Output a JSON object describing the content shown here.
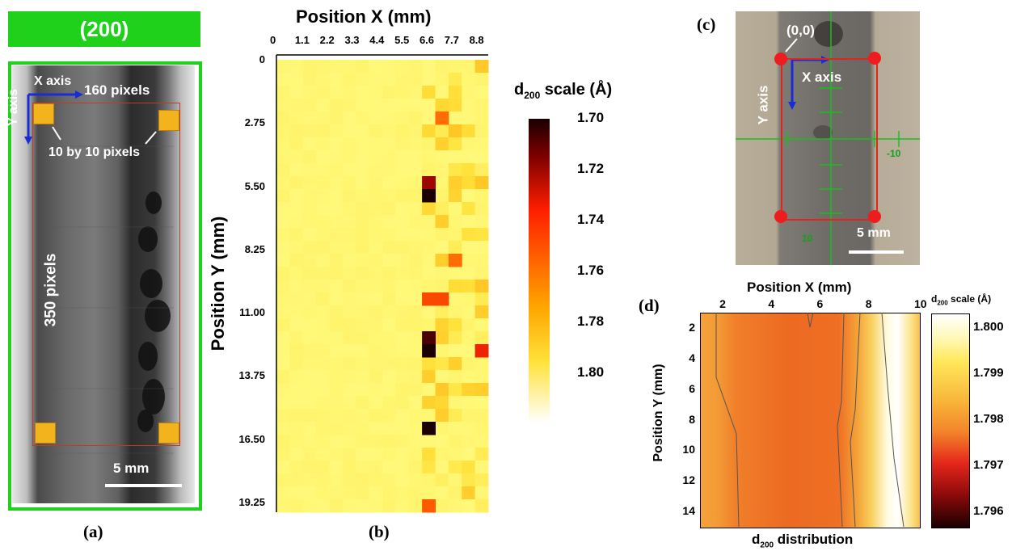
{
  "panel_a": {
    "header": "(200)",
    "x_axis_label": "X axis",
    "y_axis_label": "Y axis",
    "width_label": "160 pixels",
    "square_label": "10 by 10 pixels",
    "height_label": "350 pixels",
    "scale_label": "5 mm",
    "caption": "(a)"
  },
  "panel_b": {
    "caption": "(b)",
    "colorbar_title": "d",
    "colorbar_sub": "200",
    "colorbar_suffix": " scale (Å)",
    "colorbar_ticks": [
      "1.70",
      "1.72",
      "1.74",
      "1.76",
      "1.78",
      "1.80"
    ]
  },
  "panel_c": {
    "caption": "(c)",
    "origin_label": "(0,0)",
    "x_axis_label": "X axis",
    "y_axis_label": "Y axis",
    "tick_right": "-10",
    "tick_bottom": "10",
    "scale_label": "5 mm"
  },
  "panel_d": {
    "caption": "(d)",
    "colorbar_title": "d",
    "colorbar_sub": "200",
    "colorbar_suffix": " scale (Å)",
    "colorbar_ticks": [
      "1.800",
      "1.799",
      "1.798",
      "1.797",
      "1.796"
    ],
    "bottom_title": "d",
    "bottom_sub": "200",
    "bottom_suffix": " distribution"
  },
  "chart_data": [
    {
      "type": "heatmap",
      "title": "",
      "xlabel": "Position X (mm)",
      "ylabel": "Position Y (mm)",
      "x_ticks": [
        "0",
        "1.1",
        "2.2",
        "3.3",
        "4.4",
        "5.5",
        "6.6",
        "7.7",
        "8.8"
      ],
      "y_ticks": [
        "0",
        "2.75",
        "5.50",
        "8.25",
        "11.00",
        "13.75",
        "16.50",
        "19.25"
      ],
      "xlim": [
        0,
        9.35
      ],
      "ylim": [
        0,
        19.25
      ],
      "colorbar_range": [
        1.7,
        1.8
      ],
      "note_values": "d200 spacing per 16x35 grid cell; background ~1.795-1.80, hot spots near X 6.6-8.8",
      "hotspots": [
        {
          "x": 6.9,
          "y": 5.0,
          "value": 1.715
        },
        {
          "x": 6.9,
          "y": 5.5,
          "value": 1.7
        },
        {
          "x": 6.6,
          "y": 11.6,
          "value": 1.705
        },
        {
          "x": 6.6,
          "y": 12.6,
          "value": 1.7
        },
        {
          "x": 6.9,
          "y": 15.4,
          "value": 1.7
        },
        {
          "x": 8.9,
          "y": 12.1,
          "value": 1.73
        },
        {
          "x": 7.9,
          "y": 8.5,
          "value": 1.75
        },
        {
          "x": 7.4,
          "y": 10.1,
          "value": 1.74
        },
        {
          "x": 6.9,
          "y": 10.1,
          "value": 1.74
        },
        {
          "x": 7.4,
          "y": 2.2,
          "value": 1.75
        },
        {
          "x": 6.6,
          "y": 19.0,
          "value": 1.745
        }
      ]
    },
    {
      "type": "heatmap",
      "title": "",
      "xlabel": "Position X (mm)",
      "ylabel": "Position Y (mm)",
      "x_ticks": [
        "2",
        "4",
        "6",
        "8",
        "10"
      ],
      "y_ticks": [
        "2",
        "4",
        "6",
        "8",
        "10",
        "12",
        "14"
      ],
      "xlim": [
        1,
        10
      ],
      "ylim": [
        1,
        15
      ],
      "colorbar_range": [
        1.796,
        1.8
      ],
      "note_values": "contour of d200; ~1.7982 at X 1-3, ~1.7975 at X 3-7, rising to ~1.800 at X 8.5-9"
    }
  ]
}
